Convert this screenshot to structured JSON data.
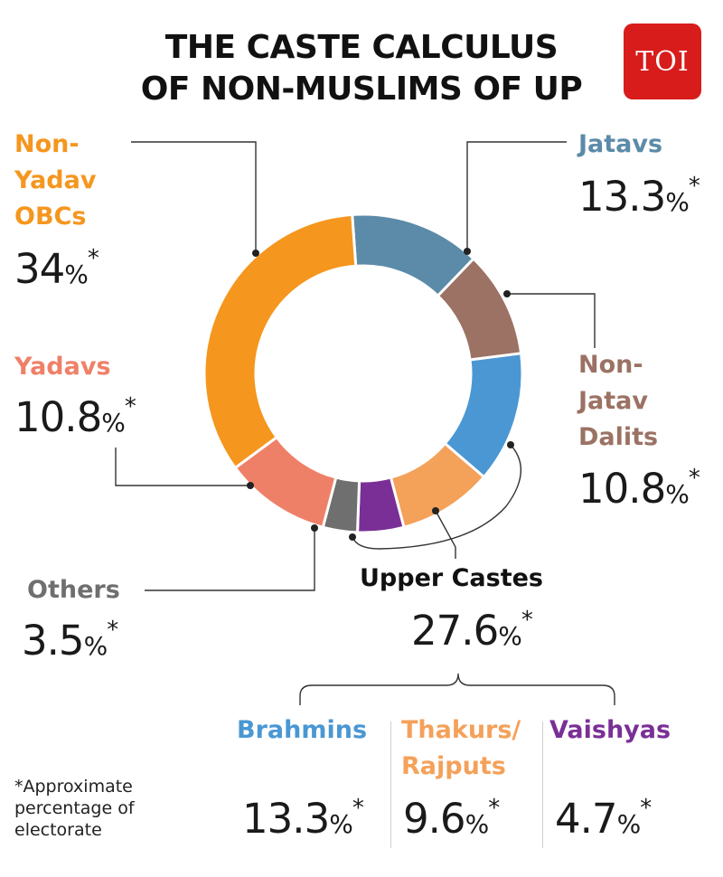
{
  "header": {
    "title_line1": "THE CASTE CALCULUS",
    "title_line2": "OF NON-MUSLIMS OF UP",
    "logo_text": "TOI"
  },
  "chart_data": {
    "type": "pie",
    "style": "donut",
    "slices": [
      {
        "key": "jatavs",
        "value": 13.3,
        "color": "#5b8ba8"
      },
      {
        "key": "non_jatav_dalits",
        "value": 10.8,
        "color": "#9b7264"
      },
      {
        "key": "brahmins",
        "value": 13.3,
        "color": "#4a97d3"
      },
      {
        "key": "thakurs",
        "value": 9.6,
        "color": "#f4a15a"
      },
      {
        "key": "vaishyas",
        "value": 4.7,
        "color": "#7a2f96"
      },
      {
        "key": "others",
        "value": 3.5,
        "color": "#6f6f6f"
      },
      {
        "key": "yadavs",
        "value": 10.8,
        "color": "#ef8068"
      },
      {
        "key": "non_yadav_obcs",
        "value": 34,
        "color": "#f5961e"
      }
    ]
  },
  "labels": {
    "non_yadav_obcs": {
      "line1": "Non-",
      "line2": "Yadav",
      "line3": "OBCs",
      "value": "34",
      "color": "#f5961e"
    },
    "jatavs": {
      "line1": "Jatavs",
      "value": "13.3",
      "color": "#5b8ba8"
    },
    "non_jatav_dalits": {
      "line1": "Non-",
      "line2": "Jatav",
      "line3": "Dalits",
      "value": "10.8",
      "color": "#9b7264"
    },
    "yadavs": {
      "line1": "Yadavs",
      "value": "10.8",
      "color": "#ef8068"
    },
    "others": {
      "line1": "Others",
      "value": "3.5",
      "color": "#6f6f6f"
    },
    "upper_castes": {
      "line1": "Upper Castes",
      "value": "27.6",
      "color": "#111111"
    },
    "brahmins": {
      "line1": "Brahmins",
      "value": "13.3",
      "color": "#4a97d3"
    },
    "thakurs": {
      "line1": "Thakurs/",
      "line2": "Rajputs",
      "value": "9.6",
      "color": "#f4a15a"
    },
    "vaishyas": {
      "line1": "Vaishyas",
      "value": "4.7",
      "color": "#7a2f96"
    }
  },
  "units": {
    "percent": "%",
    "asterisk": "*"
  },
  "footnote": {
    "line1": "*Approximate",
    "line2": "percentage of",
    "line3": "electorate"
  }
}
